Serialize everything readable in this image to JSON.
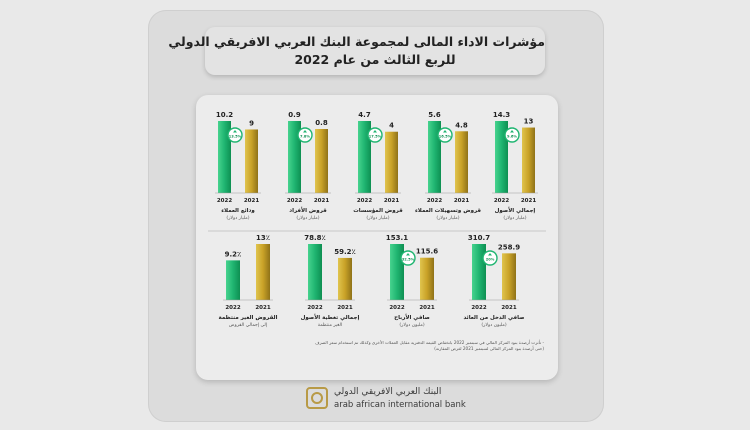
{
  "title": {
    "line1": "مؤشرات الاداء المالى لمجموعة البنك العربي الافريقي الدولي",
    "line2": "للربع الثالث من عام 2022"
  },
  "colors": {
    "bar_2022": "#1fb571",
    "bar_2021": "#c9a227",
    "badge_border": "#1fb571"
  },
  "chart_data": [
    {
      "type": "bar",
      "title": "إجمالي الأصول",
      "subtitle": "(مليار دولار)",
      "categories": [
        "2022",
        "2021"
      ],
      "values": [
        14.3,
        13
      ],
      "value_labels": [
        "14.3",
        "13"
      ],
      "change": "9.6%"
    },
    {
      "type": "bar",
      "title": "قروض وتسهيلات العملاء",
      "subtitle": "(مليار دولار)",
      "categories": [
        "2022",
        "2021"
      ],
      "values": [
        5.6,
        4.8
      ],
      "value_labels": [
        "5.6",
        "4.8"
      ],
      "change": "16.5%"
    },
    {
      "type": "bar",
      "title": "قروض المؤسسات",
      "subtitle": "(مليار دولار)",
      "categories": [
        "2022",
        "2021"
      ],
      "values": [
        4.7,
        4.0
      ],
      "value_labels": [
        "4.7",
        "4"
      ],
      "change": "17.5%"
    },
    {
      "type": "bar",
      "title": "قروض الأفراد",
      "subtitle": "(مليار دولار)",
      "categories": [
        "2022",
        "2021"
      ],
      "values": [
        0.9,
        0.8
      ],
      "value_labels": [
        "0.9",
        "0.8"
      ],
      "change": "7.8%"
    },
    {
      "type": "bar",
      "title": "ودائع العملاء",
      "subtitle": "(مليار دولار)",
      "categories": [
        "2022",
        "2021"
      ],
      "values": [
        10.2,
        9
      ],
      "value_labels": [
        "10.2",
        "9"
      ],
      "change": "13.5%"
    },
    {
      "type": "bar",
      "title": "صافي الدخل من العائد",
      "subtitle": "(مليون دولار)",
      "categories": [
        "2022",
        "2021"
      ],
      "values": [
        310.7,
        258.9
      ],
      "value_labels": [
        "310.7",
        "258.9"
      ],
      "change": "20%"
    },
    {
      "type": "bar",
      "title": "صافي الأرباح",
      "subtitle": "(مليون دولار)",
      "categories": [
        "2022",
        "2021"
      ],
      "values": [
        153.1,
        115.6
      ],
      "value_labels": [
        "153.1",
        "115.6"
      ],
      "change": "32.5%"
    },
    {
      "type": "bar",
      "title": "إجمالي تغطية الأصول",
      "subtitle": "الغير منتظمة",
      "categories": [
        "2022",
        "2021"
      ],
      "values": [
        78.8,
        59.2
      ],
      "value_labels": [
        "78.8٪",
        "59.2٪"
      ],
      "change": ""
    },
    {
      "type": "bar",
      "title": "القروض الغير منتظمة",
      "subtitle": "إلى إجمالي القروض",
      "categories": [
        "2022",
        "2021"
      ],
      "values": [
        9.2,
        13
      ],
      "value_labels": [
        "9.2٪",
        "13٪"
      ],
      "change": ""
    }
  ],
  "notes": [
    "- تأثرت أرصدة بنود المركز المالي في سبتمبر 2022 بانخفاض القيمة الدفترية مقابل العملات الأخرى وكذلك تم استخدام سعر الصرف",
    "(حتى أرصدة بنود المركز المالى لسبتمبر 2021 لغرض المقارنة)"
  ],
  "logo": {
    "arabic": "البنك العربي الافريقي الدولي",
    "english": "arab african international bank"
  }
}
